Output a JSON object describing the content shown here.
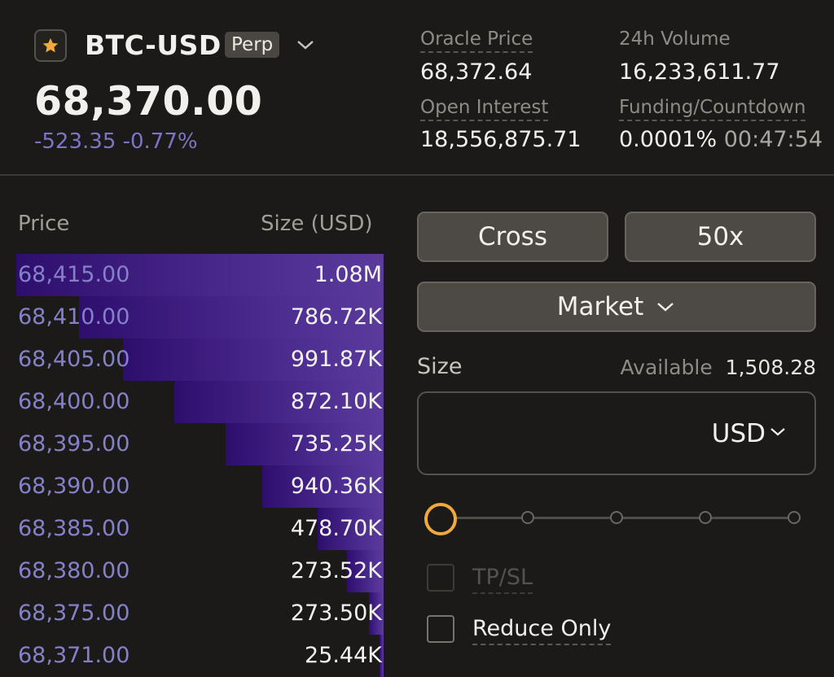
{
  "market": {
    "symbol": "BTC-USD",
    "type_badge": "Perp",
    "favorite_icon": "star-icon",
    "last_price": "68,370.00",
    "change": "-523.35 -0.77%"
  },
  "stats": {
    "oracle_label": "Oracle Price",
    "oracle_value": "68,372.64",
    "volume_label": "24h Volume",
    "volume_value": "16,233,611.77",
    "oi_label": "Open Interest",
    "oi_value": "18,556,875.71",
    "funding_label": "Funding/Countdown",
    "funding_rate": "0.0001%",
    "funding_countdown": "00:47:54"
  },
  "orderbook": {
    "price_header": "Price",
    "size_header": "Size (USD)",
    "rows": [
      {
        "price": "68,415.00",
        "size": "1.08M",
        "depth": 1.0
      },
      {
        "price": "68,410.00",
        "size": "786.72K",
        "depth": 0.83
      },
      {
        "price": "68,405.00",
        "size": "991.87K",
        "depth": 0.71
      },
      {
        "price": "68,400.00",
        "size": "872.10K",
        "depth": 0.57
      },
      {
        "price": "68,395.00",
        "size": "735.25K",
        "depth": 0.43
      },
      {
        "price": "68,390.00",
        "size": "940.36K",
        "depth": 0.33
      },
      {
        "price": "68,385.00",
        "size": "478.70K",
        "depth": 0.18
      },
      {
        "price": "68,380.00",
        "size": "273.52K",
        "depth": 0.1
      },
      {
        "price": "68,375.00",
        "size": "273.50K",
        "depth": 0.04
      },
      {
        "price": "68,371.00",
        "size": "25.44K",
        "depth": 0.01
      }
    ]
  },
  "order_form": {
    "margin_mode": "Cross",
    "leverage": "50x",
    "order_type": "Market",
    "size_label": "Size",
    "available_label": "Available",
    "available_value": "1,508.28",
    "size_unit": "USD",
    "slider_percent": 0,
    "tpsl_label": "TP/SL",
    "reduce_only_label": "Reduce Only"
  },
  "colors": {
    "background": "#1b1a18",
    "accent_purple": "#5a3b9c",
    "price_purple": "#8581c9",
    "slider_orange": "#f2a93b",
    "favorite_star": "#f2a93b"
  }
}
